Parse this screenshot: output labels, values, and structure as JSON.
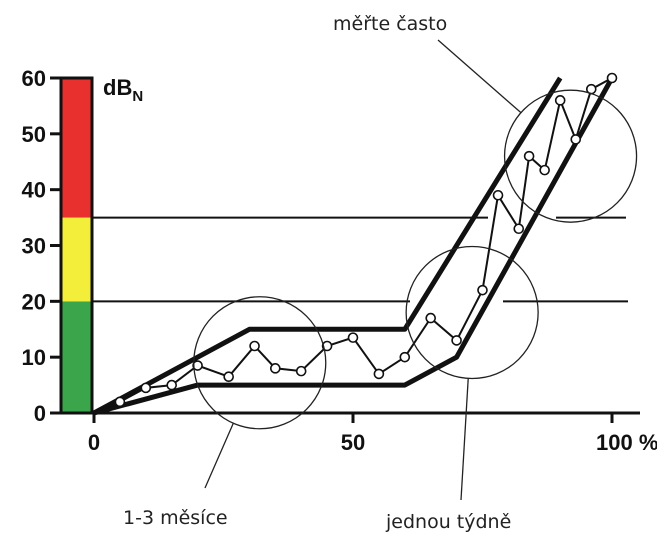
{
  "chart_data": {
    "type": "line",
    "title": "",
    "xlabel": "",
    "ylabel": "dB",
    "ylabel_subscript": "N",
    "xlim": [
      0,
      100
    ],
    "ylim": [
      0,
      60
    ],
    "x_ticks": [
      0,
      50,
      100
    ],
    "x_tick_labels": [
      "0",
      "50",
      "100 %"
    ],
    "y_ticks": [
      0,
      10,
      20,
      30,
      40,
      50,
      60
    ],
    "y_tick_labels": [
      "0",
      "10",
      "20",
      "30",
      "40",
      "50",
      "60"
    ],
    "grid": false,
    "reference_lines": [
      20,
      35
    ],
    "color_bands": [
      {
        "from": 0,
        "to": 20,
        "color": "#3aa54a"
      },
      {
        "from": 20,
        "to": 35,
        "color": "#f2ee3a"
      },
      {
        "from": 35,
        "to": 60,
        "color": "#e8312f"
      }
    ],
    "envelope_upper": [
      [
        0,
        0
      ],
      [
        30,
        15
      ],
      [
        60,
        15
      ],
      [
        90,
        60
      ]
    ],
    "envelope_lower": [
      [
        0,
        0
      ],
      [
        20,
        5
      ],
      [
        60,
        5
      ],
      [
        70,
        10
      ],
      [
        100,
        60
      ]
    ],
    "series": [
      {
        "x": [
          5,
          10,
          15,
          20,
          26,
          31,
          35,
          40,
          45,
          50,
          55,
          60,
          65,
          70,
          75,
          78,
          82,
          84,
          87,
          90,
          93,
          96,
          100
        ],
        "values": [
          2,
          4.5,
          5,
          8.5,
          6.5,
          12,
          8,
          7.5,
          12,
          13.5,
          7,
          10,
          17,
          13,
          22,
          39,
          33,
          46,
          43.5,
          56,
          49,
          58,
          60
        ]
      }
    ],
    "annotations": [
      {
        "text": "měřte často",
        "circle_center": [
          92,
          46
        ]
      },
      {
        "text": "1-3 měsíce",
        "circle_center": [
          32,
          9
        ]
      },
      {
        "text": "jednou týdně",
        "circle_center": [
          73,
          18
        ]
      }
    ],
    "colors": {
      "line": "#111111",
      "marker_fill": "#ffffff",
      "envelope": "#111111"
    }
  }
}
